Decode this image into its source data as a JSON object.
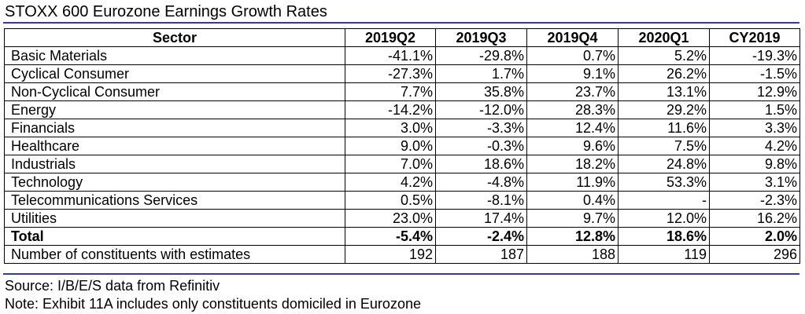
{
  "title": "STOXX 600 Eurozone Earnings Growth Rates",
  "table": {
    "headers": [
      "Sector",
      "2019Q2",
      "2019Q3",
      "2019Q4",
      "2020Q1",
      "CY2019"
    ],
    "rows": [
      [
        "Basic Materials",
        "-41.1%",
        "-29.8%",
        "0.7%",
        "5.2%",
        "-19.3%"
      ],
      [
        "Cyclical Consumer",
        "-27.3%",
        "1.7%",
        "9.1%",
        "26.2%",
        "-1.5%"
      ],
      [
        "Non-Cyclical Consumer",
        "7.7%",
        "35.8%",
        "23.7%",
        "13.1%",
        "12.9%"
      ],
      [
        "Energy",
        "-14.2%",
        "-12.0%",
        "28.3%",
        "29.2%",
        "1.5%"
      ],
      [
        "Financials",
        "3.0%",
        "-3.3%",
        "12.4%",
        "11.6%",
        "3.3%"
      ],
      [
        "Healthcare",
        "9.0%",
        "-0.3%",
        "9.6%",
        "7.5%",
        "4.2%"
      ],
      [
        "Industrials",
        "7.0%",
        "18.6%",
        "18.2%",
        "24.8%",
        "9.8%"
      ],
      [
        "Technology",
        "4.2%",
        "-4.8%",
        "11.9%",
        "53.3%",
        "3.1%"
      ],
      [
        "Telecommunications Services",
        "0.5%",
        "-8.1%",
        "0.4%",
        "-",
        "-2.3%"
      ],
      [
        "Utilities",
        "23.0%",
        "17.4%",
        "9.7%",
        "12.0%",
        "16.2%"
      ],
      [
        "Total",
        "-5.4%",
        "-2.4%",
        "12.8%",
        "18.6%",
        "2.0%"
      ],
      [
        "Number of constituents with estimates",
        "192",
        "187",
        "188",
        "119",
        "296"
      ]
    ]
  },
  "footnotes": {
    "source": "Source: I/B/E/S data from Refinitiv",
    "note": "Note: Exhibit 11A includes only constituents domiciled in Eurozone"
  },
  "colors": {
    "rule": "#2f3e93"
  }
}
